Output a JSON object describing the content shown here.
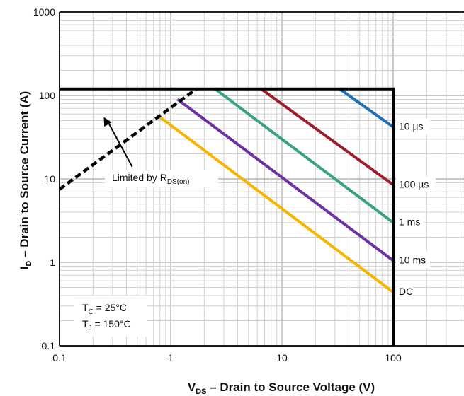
{
  "chart_data": {
    "type": "line",
    "title": "",
    "xlabel": {
      "main": "V",
      "sub": "DS",
      "rest": " – Drain to Source Voltage (V)"
    },
    "ylabel": {
      "main": "I",
      "sub": "D",
      "rest": " – Drain to Source Current (A)"
    },
    "x_scale": "log",
    "y_scale": "log",
    "xlim": [
      0.1,
      1000
    ],
    "ylim": [
      0.1,
      1000
    ],
    "grid": true,
    "x_ticks": [
      {
        "value": 0.1,
        "label": "0.1"
      },
      {
        "value": 1,
        "label": "1"
      },
      {
        "value": 10,
        "label": "10"
      },
      {
        "value": 100,
        "label": "100"
      }
    ],
    "y_ticks": [
      {
        "value": 0.1,
        "label": "0.1"
      },
      {
        "value": 1,
        "label": "1"
      },
      {
        "value": 10,
        "label": "10"
      },
      {
        "value": 100,
        "label": "100"
      },
      {
        "value": 1000,
        "label": "1000"
      }
    ],
    "boundary": {
      "color": "#000000",
      "points": [
        [
          0.1,
          120
        ],
        [
          100,
          120
        ],
        [
          100,
          0.1
        ]
      ]
    },
    "rds_limit": {
      "color": "#000000",
      "style": "dashed",
      "points": [
        [
          0.1,
          7.5
        ],
        [
          1.7,
          120
        ]
      ],
      "label": {
        "main": "Limited by R",
        "sub": "DS(on)"
      },
      "arrow_from": [
        0.45,
        14
      ],
      "arrow_to": [
        0.25,
        55
      ]
    },
    "series": [
      {
        "name": "10 µs",
        "color": "#1f6fb5",
        "x": [
          33,
          100
        ],
        "y": [
          120,
          42
        ]
      },
      {
        "name": "100 µs",
        "color": "#9b1c2a",
        "x": [
          6.5,
          100
        ],
        "y": [
          120,
          8.5
        ]
      },
      {
        "name": "1 ms",
        "color": "#3aa27d",
        "x": [
          2.5,
          100
        ],
        "y": [
          120,
          3
        ]
      },
      {
        "name": "10 ms",
        "color": "#6b32a0",
        "x": [
          1.15,
          100
        ],
        "y": [
          90,
          1.05
        ]
      },
      {
        "name": "DC",
        "color": "#f7b500",
        "x": [
          0.8,
          100
        ],
        "y": [
          55,
          0.44
        ]
      }
    ],
    "annotations": [
      {
        "main": "T",
        "sub": "C",
        "rest": " = 25°C"
      },
      {
        "main": "T",
        "sub": "J",
        "rest": " = 150°C"
      }
    ]
  }
}
